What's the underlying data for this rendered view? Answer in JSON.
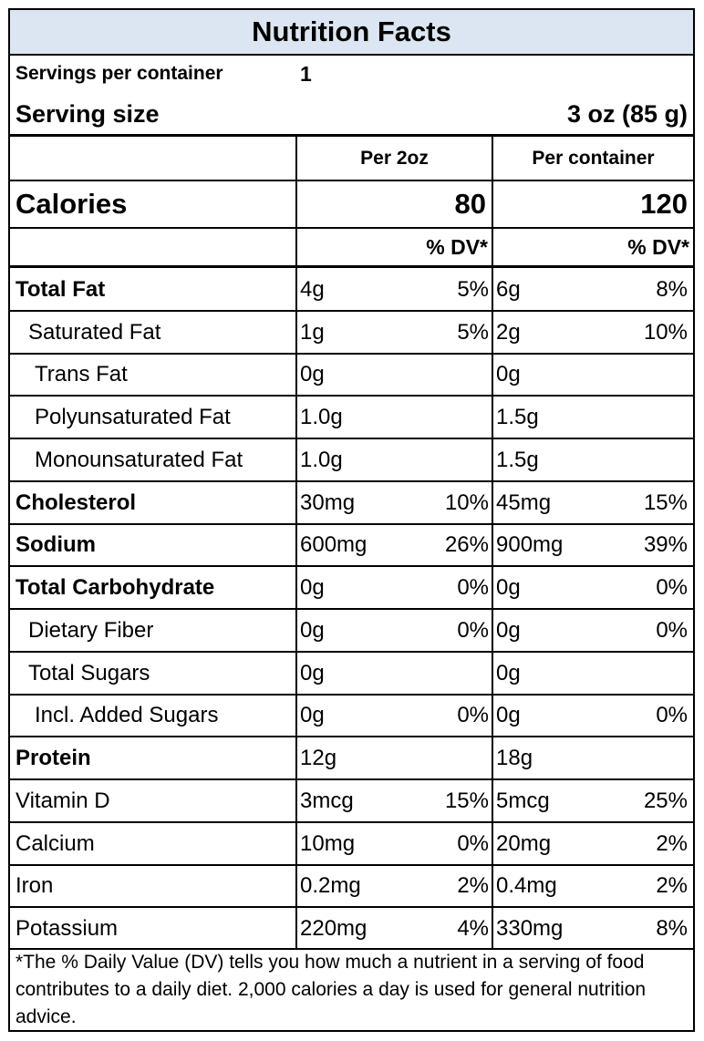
{
  "title": "Nutrition Facts",
  "servings_per_container_label": "Servings per container",
  "servings_per_container_value": "1",
  "serving_size_label": "Serving size",
  "serving_size_value": "3 oz (85 g)",
  "columns": [
    "Per 2oz",
    "Per container"
  ],
  "calories_label": "Calories",
  "calories": [
    "80",
    "120"
  ],
  "dv_header": "% DV*",
  "nutrients": [
    {
      "name": "Total Fat",
      "bold": true,
      "indent": 0,
      "a1": "4g",
      "p1": "5%",
      "a2": "6g",
      "p2": "8%"
    },
    {
      "name": "Saturated Fat",
      "bold": false,
      "indent": 1,
      "a1": "1g",
      "p1": "5%",
      "a2": "2g",
      "p2": "10%"
    },
    {
      "name": "Trans Fat",
      "bold": false,
      "indent": 2,
      "a1": "0g",
      "p1": "",
      "a2": "0g",
      "p2": ""
    },
    {
      "name": "Polyunsaturated Fat",
      "bold": false,
      "indent": 2,
      "a1": "1.0g",
      "p1": "",
      "a2": "1.5g",
      "p2": ""
    },
    {
      "name": "Monounsaturated Fat",
      "bold": false,
      "indent": 2,
      "a1": "1.0g",
      "p1": "",
      "a2": "1.5g",
      "p2": ""
    },
    {
      "name": "Cholesterol",
      "bold": true,
      "indent": 0,
      "a1": "30mg",
      "p1": "10%",
      "a2": "45mg",
      "p2": "15%"
    },
    {
      "name": "Sodium",
      "bold": true,
      "indent": 0,
      "a1": "600mg",
      "p1": "26%",
      "a2": "900mg",
      "p2": "39%"
    },
    {
      "name": "Total Carbohydrate",
      "bold": true,
      "indent": 0,
      "a1": "0g",
      "p1": "0%",
      "a2": "0g",
      "p2": "0%"
    },
    {
      "name": "Dietary Fiber",
      "bold": false,
      "indent": 1,
      "a1": "0g",
      "p1": "0%",
      "a2": "0g",
      "p2": "0%"
    },
    {
      "name": "Total Sugars",
      "bold": false,
      "indent": 1,
      "a1": "0g",
      "p1": "",
      "a2": "0g",
      "p2": ""
    },
    {
      "name": "Incl. Added Sugars",
      "bold": false,
      "indent": 2,
      "a1": "0g",
      "p1": "0%",
      "a2": "0g",
      "p2": "0%"
    },
    {
      "name": "Protein",
      "bold": true,
      "indent": 0,
      "a1": "12g",
      "p1": "",
      "a2": "18g",
      "p2": ""
    },
    {
      "name": "Vitamin D",
      "bold": false,
      "indent": 0,
      "a1": "3mcg",
      "p1": "15%",
      "a2": "5mcg",
      "p2": "25%"
    },
    {
      "name": "Calcium",
      "bold": false,
      "indent": 0,
      "a1": "10mg",
      "p1": "0%",
      "a2": "20mg",
      "p2": "2%"
    },
    {
      "name": "Iron",
      "bold": false,
      "indent": 0,
      "a1": "0.2mg",
      "p1": "2%",
      "a2": "0.4mg",
      "p2": "2%"
    },
    {
      "name": "Potassium",
      "bold": false,
      "indent": 0,
      "a1": "220mg",
      "p1": "4%",
      "a2": "330mg",
      "p2": "8%"
    }
  ],
  "footnote": "*The % Daily Value (DV) tells you how much a nutrient in a serving of food contributes to a daily diet. 2,000 calories a day is used for general nutrition advice."
}
